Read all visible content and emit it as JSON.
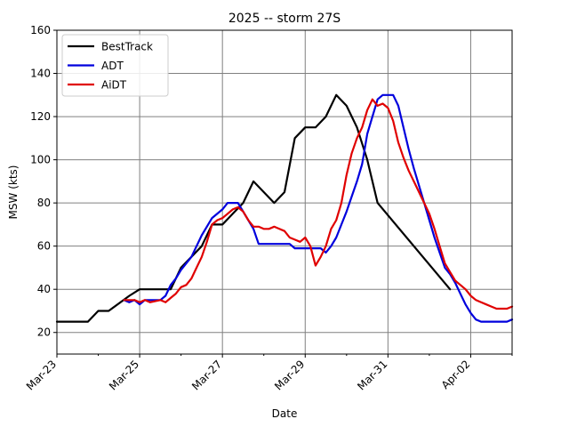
{
  "chart_data": {
    "type": "line",
    "title": "2025 -- storm 27S",
    "xlabel": "Date",
    "ylabel": "MSW (kts)",
    "xlim": [
      "2025-03-23",
      "2025-04-03"
    ],
    "ylim": [
      10,
      160
    ],
    "x_tick_labels": [
      "Mar-23",
      "Mar-25",
      "Mar-27",
      "Mar-29",
      "Mar-31",
      "Apr-02"
    ],
    "x_major_ticks": [
      "2025-03-23",
      "2025-03-25",
      "2025-03-27",
      "2025-03-29",
      "2025-03-31",
      "2025-04-02"
    ],
    "x_minor_ticks": [
      "2025-03-24",
      "2025-03-26",
      "2025-03-28",
      "2025-03-30",
      "2025-04-01",
      "2025-04-03"
    ],
    "y_ticks": [
      20,
      40,
      60,
      80,
      100,
      120,
      140,
      160
    ],
    "grid": true,
    "legend_position": "top-left",
    "series": [
      {
        "name": "BestTrack",
        "color": "#000000",
        "points": [
          [
            "2025-03-23 00:00",
            25
          ],
          [
            "2025-03-23 18:00",
            25
          ],
          [
            "2025-03-24 00:00",
            30
          ],
          [
            "2025-03-24 06:00",
            30
          ],
          [
            "2025-03-24 18:00",
            37
          ],
          [
            "2025-03-25 00:00",
            40
          ],
          [
            "2025-03-25 18:00",
            40
          ],
          [
            "2025-03-26 00:00",
            50
          ],
          [
            "2025-03-26 12:00",
            60
          ],
          [
            "2025-03-26 18:00",
            70
          ],
          [
            "2025-03-27 00:00",
            70
          ],
          [
            "2025-03-27 06:00",
            75
          ],
          [
            "2025-03-27 12:00",
            80
          ],
          [
            "2025-03-27 18:00",
            90
          ],
          [
            "2025-03-28 06:00",
            80
          ],
          [
            "2025-03-28 12:00",
            85
          ],
          [
            "2025-03-28 18:00",
            110
          ],
          [
            "2025-03-29 00:00",
            115
          ],
          [
            "2025-03-29 06:00",
            115
          ],
          [
            "2025-03-29 12:00",
            120
          ],
          [
            "2025-03-29 18:00",
            130
          ],
          [
            "2025-03-30 00:00",
            125
          ],
          [
            "2025-03-30 06:00",
            115
          ],
          [
            "2025-03-30 12:00",
            100
          ],
          [
            "2025-03-30 18:00",
            80
          ],
          [
            "2025-04-01 12:00",
            40
          ]
        ]
      },
      {
        "name": "ADT",
        "color": "#0000dd",
        "points": [
          [
            "2025-03-24 15:00",
            35
          ],
          [
            "2025-03-24 18:00",
            34
          ],
          [
            "2025-03-24 21:00",
            35
          ],
          [
            "2025-03-25 00:00",
            33
          ],
          [
            "2025-03-25 03:00",
            35
          ],
          [
            "2025-03-25 12:00",
            35
          ],
          [
            "2025-03-25 15:00",
            37
          ],
          [
            "2025-03-25 18:00",
            42
          ],
          [
            "2025-03-25 21:00",
            45
          ],
          [
            "2025-03-26 00:00",
            49
          ],
          [
            "2025-03-26 06:00",
            55
          ],
          [
            "2025-03-26 12:00",
            65
          ],
          [
            "2025-03-26 18:00",
            73
          ],
          [
            "2025-03-27 00:00",
            77
          ],
          [
            "2025-03-27 03:00",
            80
          ],
          [
            "2025-03-27 09:00",
            80
          ],
          [
            "2025-03-27 12:00",
            76
          ],
          [
            "2025-03-27 18:00",
            68
          ],
          [
            "2025-03-27 21:00",
            61
          ],
          [
            "2025-03-28 15:00",
            61
          ],
          [
            "2025-03-28 18:00",
            59
          ],
          [
            "2025-03-29 09:00",
            59
          ],
          [
            "2025-03-29 12:00",
            57
          ],
          [
            "2025-03-29 15:00",
            60
          ],
          [
            "2025-03-29 18:00",
            64
          ],
          [
            "2025-03-29 21:00",
            70
          ],
          [
            "2025-03-30 00:00",
            76
          ],
          [
            "2025-03-30 03:00",
            83
          ],
          [
            "2025-03-30 06:00",
            90
          ],
          [
            "2025-03-30 09:00",
            98
          ],
          [
            "2025-03-30 12:00",
            112
          ],
          [
            "2025-03-30 15:00",
            120
          ],
          [
            "2025-03-30 18:00",
            128
          ],
          [
            "2025-03-30 21:00",
            130
          ],
          [
            "2025-03-31 03:00",
            130
          ],
          [
            "2025-03-31 06:00",
            125
          ],
          [
            "2025-03-31 09:00",
            115
          ],
          [
            "2025-03-31 12:00",
            105
          ],
          [
            "2025-03-31 15:00",
            96
          ],
          [
            "2025-03-31 18:00",
            88
          ],
          [
            "2025-03-31 21:00",
            80
          ],
          [
            "2025-04-01 00:00",
            72
          ],
          [
            "2025-04-01 03:00",
            64
          ],
          [
            "2025-04-01 06:00",
            57
          ],
          [
            "2025-04-01 09:00",
            50
          ],
          [
            "2025-04-01 12:00",
            47
          ],
          [
            "2025-04-01 15:00",
            43
          ],
          [
            "2025-04-01 18:00",
            38
          ],
          [
            "2025-04-01 21:00",
            33
          ],
          [
            "2025-04-02 00:00",
            29
          ],
          [
            "2025-04-02 03:00",
            26
          ],
          [
            "2025-04-02 06:00",
            25
          ],
          [
            "2025-04-02 09:00",
            25
          ],
          [
            "2025-04-02 12:00",
            25
          ],
          [
            "2025-04-02 15:00",
            25
          ],
          [
            "2025-04-02 18:00",
            25
          ],
          [
            "2025-04-02 21:00",
            25
          ],
          [
            "2025-04-03 00:00",
            26
          ]
        ]
      },
      {
        "name": "AiDT",
        "color": "#e00000",
        "points": [
          [
            "2025-03-24 15:00",
            35
          ],
          [
            "2025-03-24 21:00",
            35
          ],
          [
            "2025-03-25 00:00",
            34
          ],
          [
            "2025-03-25 03:00",
            35
          ],
          [
            "2025-03-25 06:00",
            34
          ],
          [
            "2025-03-25 12:00",
            35
          ],
          [
            "2025-03-25 15:00",
            34
          ],
          [
            "2025-03-25 18:00",
            36
          ],
          [
            "2025-03-25 21:00",
            38
          ],
          [
            "2025-03-26 00:00",
            41
          ],
          [
            "2025-03-26 03:00",
            42
          ],
          [
            "2025-03-26 06:00",
            45
          ],
          [
            "2025-03-26 09:00",
            50
          ],
          [
            "2025-03-26 12:00",
            55
          ],
          [
            "2025-03-26 15:00",
            62
          ],
          [
            "2025-03-26 18:00",
            70
          ],
          [
            "2025-03-26 21:00",
            72
          ],
          [
            "2025-03-27 00:00",
            73
          ],
          [
            "2025-03-27 03:00",
            75
          ],
          [
            "2025-03-27 06:00",
            77
          ],
          [
            "2025-03-27 09:00",
            78
          ],
          [
            "2025-03-27 12:00",
            76
          ],
          [
            "2025-03-27 15:00",
            72
          ],
          [
            "2025-03-27 18:00",
            69
          ],
          [
            "2025-03-27 21:00",
            69
          ],
          [
            "2025-03-28 00:00",
            68
          ],
          [
            "2025-03-28 03:00",
            68
          ],
          [
            "2025-03-28 06:00",
            69
          ],
          [
            "2025-03-28 09:00",
            68
          ],
          [
            "2025-03-28 12:00",
            67
          ],
          [
            "2025-03-28 15:00",
            64
          ],
          [
            "2025-03-28 18:00",
            63
          ],
          [
            "2025-03-28 21:00",
            62
          ],
          [
            "2025-03-29 00:00",
            64
          ],
          [
            "2025-03-29 03:00",
            60
          ],
          [
            "2025-03-29 06:00",
            51
          ],
          [
            "2025-03-29 09:00",
            55
          ],
          [
            "2025-03-29 12:00",
            60
          ],
          [
            "2025-03-29 15:00",
            68
          ],
          [
            "2025-03-29 18:00",
            72
          ],
          [
            "2025-03-29 21:00",
            80
          ],
          [
            "2025-03-30 00:00",
            93
          ],
          [
            "2025-03-30 03:00",
            103
          ],
          [
            "2025-03-30 06:00",
            110
          ],
          [
            "2025-03-30 09:00",
            115
          ],
          [
            "2025-03-30 12:00",
            123
          ],
          [
            "2025-03-30 15:00",
            128
          ],
          [
            "2025-03-30 18:00",
            125
          ],
          [
            "2025-03-30 21:00",
            126
          ],
          [
            "2025-03-31 00:00",
            124
          ],
          [
            "2025-03-31 03:00",
            118
          ],
          [
            "2025-03-31 06:00",
            108
          ],
          [
            "2025-03-31 09:00",
            101
          ],
          [
            "2025-03-31 12:00",
            95
          ],
          [
            "2025-03-31 15:00",
            90
          ],
          [
            "2025-03-31 18:00",
            85
          ],
          [
            "2025-03-31 21:00",
            80
          ],
          [
            "2025-04-01 00:00",
            75
          ],
          [
            "2025-04-01 03:00",
            68
          ],
          [
            "2025-04-01 06:00",
            60
          ],
          [
            "2025-04-01 09:00",
            52
          ],
          [
            "2025-04-01 12:00",
            48
          ],
          [
            "2025-04-01 15:00",
            44
          ],
          [
            "2025-04-01 18:00",
            42
          ],
          [
            "2025-04-01 21:00",
            40
          ],
          [
            "2025-04-02 00:00",
            37
          ],
          [
            "2025-04-02 03:00",
            35
          ],
          [
            "2025-04-02 06:00",
            34
          ],
          [
            "2025-04-02 09:00",
            33
          ],
          [
            "2025-04-02 12:00",
            32
          ],
          [
            "2025-04-02 15:00",
            31
          ],
          [
            "2025-04-02 18:00",
            31
          ],
          [
            "2025-04-02 21:00",
            31
          ],
          [
            "2025-04-03 00:00",
            32
          ]
        ]
      }
    ]
  }
}
